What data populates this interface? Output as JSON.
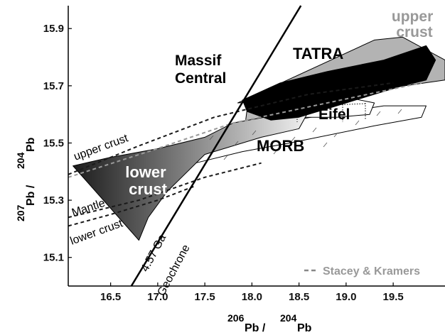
{
  "chart_data": {
    "type": "scatter",
    "xlabel": {
      "pre": "206",
      "base1": "Pb / ",
      "pre2": "204",
      "base2": "Pb"
    },
    "ylabel": {
      "pre": "207",
      "base1": "Pb / ",
      "pre2": "204",
      "base2": "Pb"
    },
    "xlim": [
      16.05,
      20.05
    ],
    "ylim": [
      15.0,
      15.98
    ],
    "xticks": [
      {
        "v": 16.5,
        "label": "16.5"
      },
      {
        "v": 17.0,
        "label": "17.0"
      },
      {
        "v": 17.5,
        "label": "17.5"
      },
      {
        "v": 18.0,
        "label": "18.0"
      },
      {
        "v": 18.5,
        "label": "18.5"
      },
      {
        "v": 19.0,
        "label": "19.0"
      },
      {
        "v": 19.5,
        "label": "19.5"
      }
    ],
    "yticks": [
      {
        "v": 15.1,
        "label": "15.1"
      },
      {
        "v": 15.3,
        "label": "15.3"
      },
      {
        "v": 15.5,
        "label": "15.5"
      },
      {
        "v": 15.7,
        "label": "15.7"
      },
      {
        "v": 15.9,
        "label": "15.9"
      }
    ],
    "fields": [
      {
        "name": "upper-crust-field",
        "fill": "#b3b3b3",
        "points": [
          [
            17.85,
            15.64
          ],
          [
            19.3,
            15.86
          ],
          [
            19.6,
            15.87
          ],
          [
            20.05,
            15.79
          ],
          [
            20.05,
            15.72
          ],
          [
            19.2,
            15.68
          ],
          [
            18.7,
            15.66
          ]
        ]
      },
      {
        "name": "morb-field",
        "fill": "#ffffff",
        "points": [
          [
            17.0,
            15.41
          ],
          [
            17.5,
            15.5
          ],
          [
            18.1,
            15.56
          ],
          [
            18.8,
            15.6
          ],
          [
            19.4,
            15.63
          ],
          [
            19.85,
            15.63
          ],
          [
            19.8,
            15.59
          ],
          [
            19.3,
            15.56
          ],
          [
            18.4,
            15.5
          ],
          [
            17.9,
            15.47
          ],
          [
            17.4,
            15.43
          ],
          [
            16.8,
            15.38
          ]
        ]
      },
      {
        "name": "eifel-field",
        "fill": "#ffffff",
        "points": [
          [
            18.35,
            15.67
          ],
          [
            19.0,
            15.66
          ],
          [
            19.3,
            15.64
          ],
          [
            19.25,
            15.6
          ],
          [
            18.9,
            15.59
          ],
          [
            18.5,
            15.59
          ],
          [
            18.1,
            15.6
          ],
          [
            18.05,
            15.64
          ]
        ]
      },
      {
        "name": "massif-central-field",
        "fill": "#bbbbbb",
        "points": [
          [
            17.95,
            15.62
          ],
          [
            18.2,
            15.63
          ],
          [
            18.3,
            15.59
          ],
          [
            18.2,
            15.55
          ],
          [
            18.05,
            15.54
          ],
          [
            17.93,
            15.57
          ]
        ]
      },
      {
        "name": "lower-crust-field",
        "fill": "gradient",
        "points": [
          [
            16.1,
            15.42
          ],
          [
            16.5,
            15.45
          ],
          [
            17.0,
            15.48
          ],
          [
            17.5,
            15.52
          ],
          [
            17.8,
            15.57
          ],
          [
            18.3,
            15.6
          ],
          [
            18.6,
            15.61
          ],
          [
            18.5,
            15.55
          ],
          [
            18.1,
            15.52
          ],
          [
            17.5,
            15.46
          ],
          [
            17.1,
            15.33
          ],
          [
            16.9,
            15.24
          ],
          [
            16.8,
            15.16
          ]
        ]
      },
      {
        "name": "tatra-field",
        "fill": "#000000",
        "points": [
          [
            17.9,
            15.65
          ],
          [
            18.3,
            15.71
          ],
          [
            18.8,
            15.75
          ],
          [
            19.4,
            15.79
          ],
          [
            19.85,
            15.84
          ],
          [
            19.95,
            15.79
          ],
          [
            19.85,
            15.72
          ],
          [
            19.6,
            15.7
          ],
          [
            19.3,
            15.67
          ],
          [
            18.9,
            15.63
          ],
          [
            18.5,
            15.59
          ],
          [
            18.2,
            15.58
          ],
          [
            17.95,
            15.61
          ]
        ]
      }
    ],
    "stacey_kramers": [
      {
        "name": "stacey-kramers-upper-crust",
        "points": [
          [
            16.05,
            15.39
          ],
          [
            16.8,
            15.49
          ],
          [
            17.6,
            15.59
          ],
          [
            18.6,
            15.67
          ],
          [
            19.5,
            15.71
          ]
        ]
      },
      {
        "name": "stacey-kramers-orogene",
        "points": [
          [
            16.05,
            15.38
          ],
          [
            16.9,
            15.47
          ],
          [
            17.8,
            15.57
          ],
          [
            18.8,
            15.64
          ],
          [
            19.8,
            15.71
          ]
        ]
      },
      {
        "name": "stacey-kramers-mantle",
        "points": [
          [
            16.05,
            15.24
          ],
          [
            16.8,
            15.3
          ],
          [
            17.5,
            15.38
          ],
          [
            18.1,
            15.43
          ]
        ]
      },
      {
        "name": "stacey-kramers-lower-crust",
        "points": [
          [
            16.05,
            15.21
          ],
          [
            16.5,
            15.25
          ],
          [
            17.0,
            15.3
          ],
          [
            17.4,
            15.35
          ]
        ]
      }
    ],
    "geochrone": {
      "points": [
        [
          16.72,
          15.0
        ],
        [
          18.52,
          15.98
        ]
      ],
      "label": "Geochrone",
      "age_label": "4.57 Ga"
    },
    "labels": {
      "upper_crust_right": [
        "upper",
        "crust"
      ],
      "tatra": "TATRA",
      "massif_central": [
        "Massif",
        "Central"
      ],
      "eifel": "Eifel",
      "morb": "MORB",
      "lower_crust_field": [
        "lower",
        "crust"
      ],
      "upper_crust_curve": "upper crust",
      "mantle_curve": "Mantle",
      "lower_crust_curve": "lower crust"
    },
    "legend": {
      "label": "Stacey & Kramers",
      "position": "bottom-right"
    },
    "colors": {
      "axis": "#000000",
      "gray_text": "#999999",
      "dash": "#1a1a1a"
    }
  }
}
